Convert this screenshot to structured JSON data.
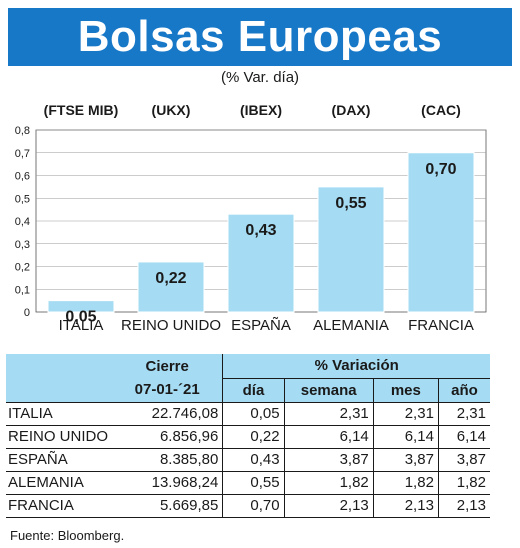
{
  "title": "Bolsas Europeas",
  "subtitle": "(% Var. día)",
  "source": "Fuente: Bloomberg.",
  "colors": {
    "banner": "#1878c8",
    "bar": "#a6dcf3",
    "header": "#a6dcf3"
  },
  "chart_data": {
    "type": "bar",
    "categories": [
      "ITALIA",
      "REINO UNIDO",
      "ESPAÑA",
      "ALEMANIA",
      "FRANCIA"
    ],
    "index_names": [
      "(FTSE MIB)",
      "(UKX)",
      "(IBEX)",
      "(DAX)",
      "(CAC)"
    ],
    "values": [
      0.05,
      0.22,
      0.43,
      0.55,
      0.7
    ],
    "value_labels": [
      "0,05",
      "0,22",
      "0,43",
      "0,55",
      "0,70"
    ],
    "yticks": [
      "0",
      "0,1",
      "0,2",
      "0,3",
      "0,4",
      "0,5",
      "0,6",
      "0,7",
      "0,8"
    ],
    "ylim": [
      0,
      0.8
    ],
    "grid": true
  },
  "table": {
    "header": {
      "cierre": "Cierre",
      "variacion": "% Variación",
      "fecha": "07-01-´21",
      "dia": "día",
      "semana": "semana",
      "mes": "mes",
      "ano": "año"
    },
    "rows": [
      {
        "name": "ITALIA",
        "cierre": "22.746,08",
        "dia": "0,05",
        "semana": "2,31",
        "mes": "2,31",
        "ano": "2,31"
      },
      {
        "name": "REINO UNIDO",
        "cierre": "6.856,96",
        "dia": "0,22",
        "semana": "6,14",
        "mes": "6,14",
        "ano": "6,14"
      },
      {
        "name": "ESPAÑA",
        "cierre": "8.385,80",
        "dia": "0,43",
        "semana": "3,87",
        "mes": "3,87",
        "ano": "3,87"
      },
      {
        "name": "ALEMANIA",
        "cierre": "13.968,24",
        "dia": "0,55",
        "semana": "1,82",
        "mes": "1,82",
        "ano": "1,82"
      },
      {
        "name": "FRANCIA",
        "cierre": "5.669,85",
        "dia": "0,70",
        "semana": "2,13",
        "mes": "2,13",
        "ano": "2,13"
      }
    ]
  }
}
